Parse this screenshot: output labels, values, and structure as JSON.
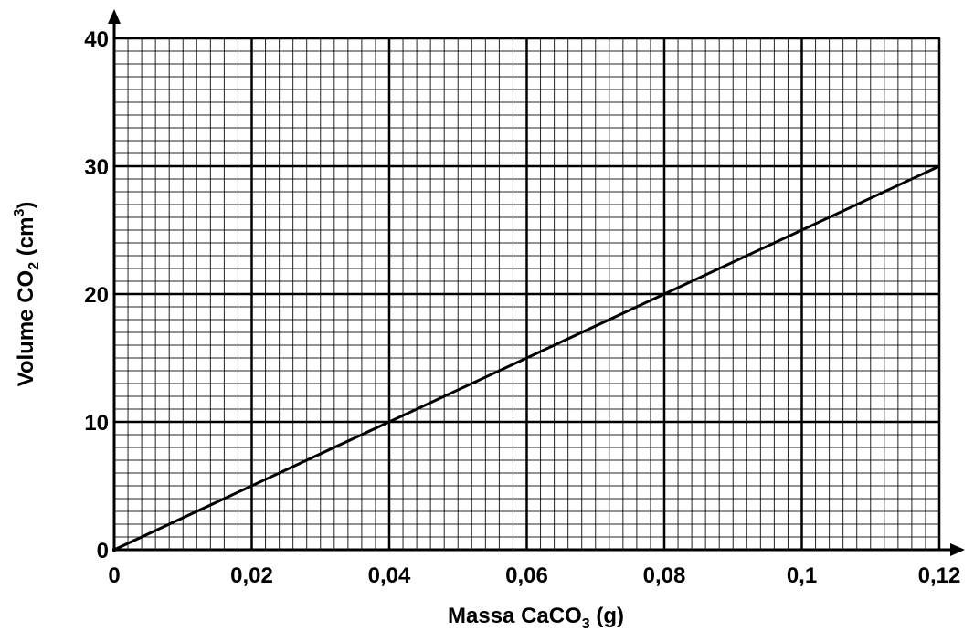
{
  "chart_data": {
    "type": "line",
    "xlabel": {
      "base": "Massa CaCO",
      "sub": "3",
      "tail": " (g)"
    },
    "ylabel": {
      "base": "Volume CO",
      "sub": "2",
      "mid": " (cm",
      "sup": "3",
      "tail": ")"
    },
    "xlim": [
      0,
      0.12
    ],
    "ylim": [
      0,
      40
    ],
    "x_ticks": [
      0,
      0.02,
      0.04,
      0.06,
      0.08,
      0.1,
      0.12
    ],
    "x_tick_labels": [
      "0",
      "0,02",
      "0,04",
      "0,06",
      "0,08",
      "0,1",
      "0,12"
    ],
    "y_ticks": [
      0,
      10,
      20,
      30,
      40
    ],
    "y_tick_labels": [
      "0",
      "10",
      "20",
      "30",
      "40"
    ],
    "grid": true,
    "minor_grid_per_major_x": 10,
    "minor_grid_per_major_y": 10,
    "series": [
      {
        "x": [
          0,
          0.12
        ],
        "y": [
          0,
          30
        ],
        "color": "#000000"
      }
    ],
    "colors": {
      "grid": "#000000",
      "line": "#000000",
      "background": "#ffffff"
    }
  }
}
